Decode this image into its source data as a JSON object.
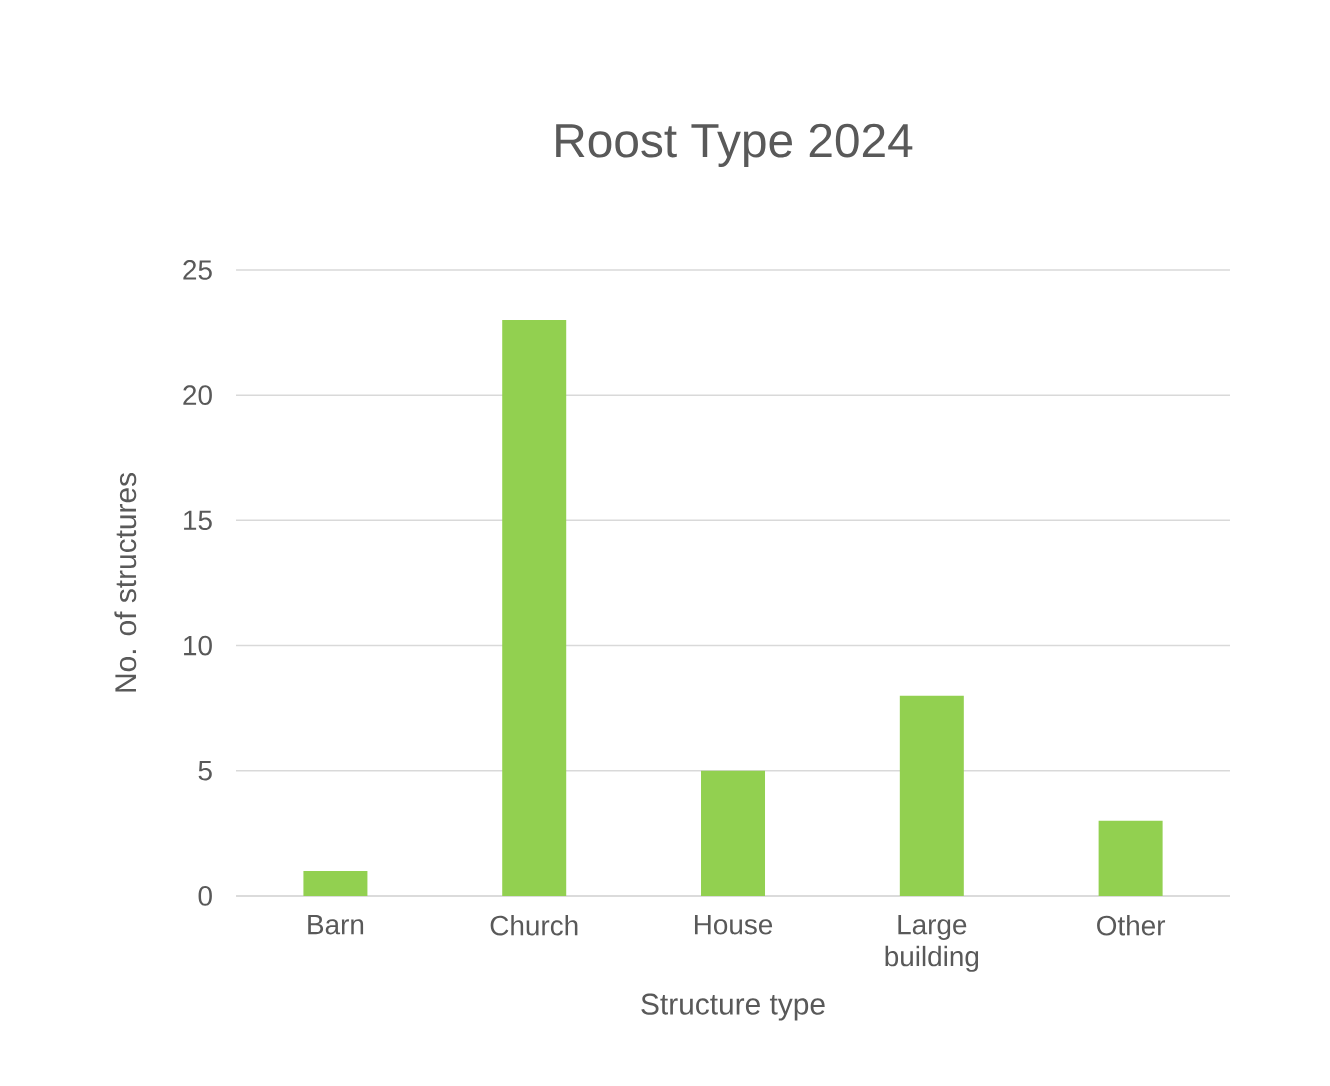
{
  "chart_data": {
    "type": "bar",
    "title": "Roost Type 2024",
    "xlabel": "Structure type",
    "ylabel": "No. of structures",
    "categories": [
      "Barn",
      "Church",
      "House",
      "Large building",
      "Other"
    ],
    "values": [
      1,
      23,
      5,
      8,
      3
    ],
    "color": "#92d050",
    "ylim": [
      0,
      25
    ],
    "yticks": [
      0,
      5,
      10,
      15,
      20,
      25
    ],
    "grid": "y"
  }
}
